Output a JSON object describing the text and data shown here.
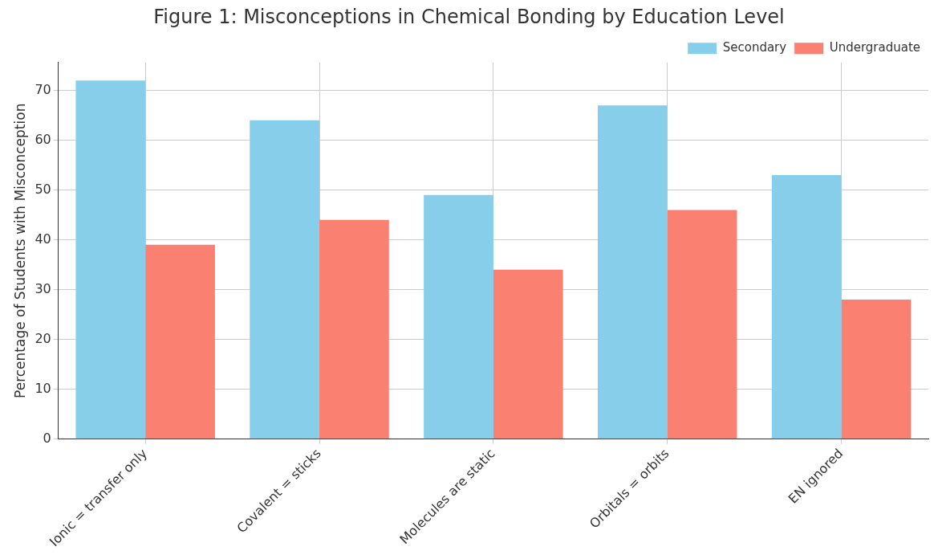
{
  "chart_data": {
    "type": "bar",
    "title": "Figure 1: Misconceptions in Chemical Bonding by Education Level",
    "ylabel": "Percentage of Students with Misconception",
    "categories": [
      "Ionic = transfer only",
      "Covalent = sticks",
      "Molecules are static",
      "Orbitals = orbits",
      "EN ignored"
    ],
    "series": [
      {
        "name": "Secondary",
        "color": "#87ceeb",
        "values": [
          72,
          64,
          49,
          67,
          53
        ]
      },
      {
        "name": "Undergraduate",
        "color": "#fa8072",
        "values": [
          39,
          44,
          34,
          46,
          28
        ]
      }
    ],
    "ylim": [
      0,
      75.6
    ],
    "yticks": [
      0,
      10,
      20,
      30,
      40,
      50,
      60,
      70
    ],
    "grid": true,
    "legend": "top right"
  }
}
